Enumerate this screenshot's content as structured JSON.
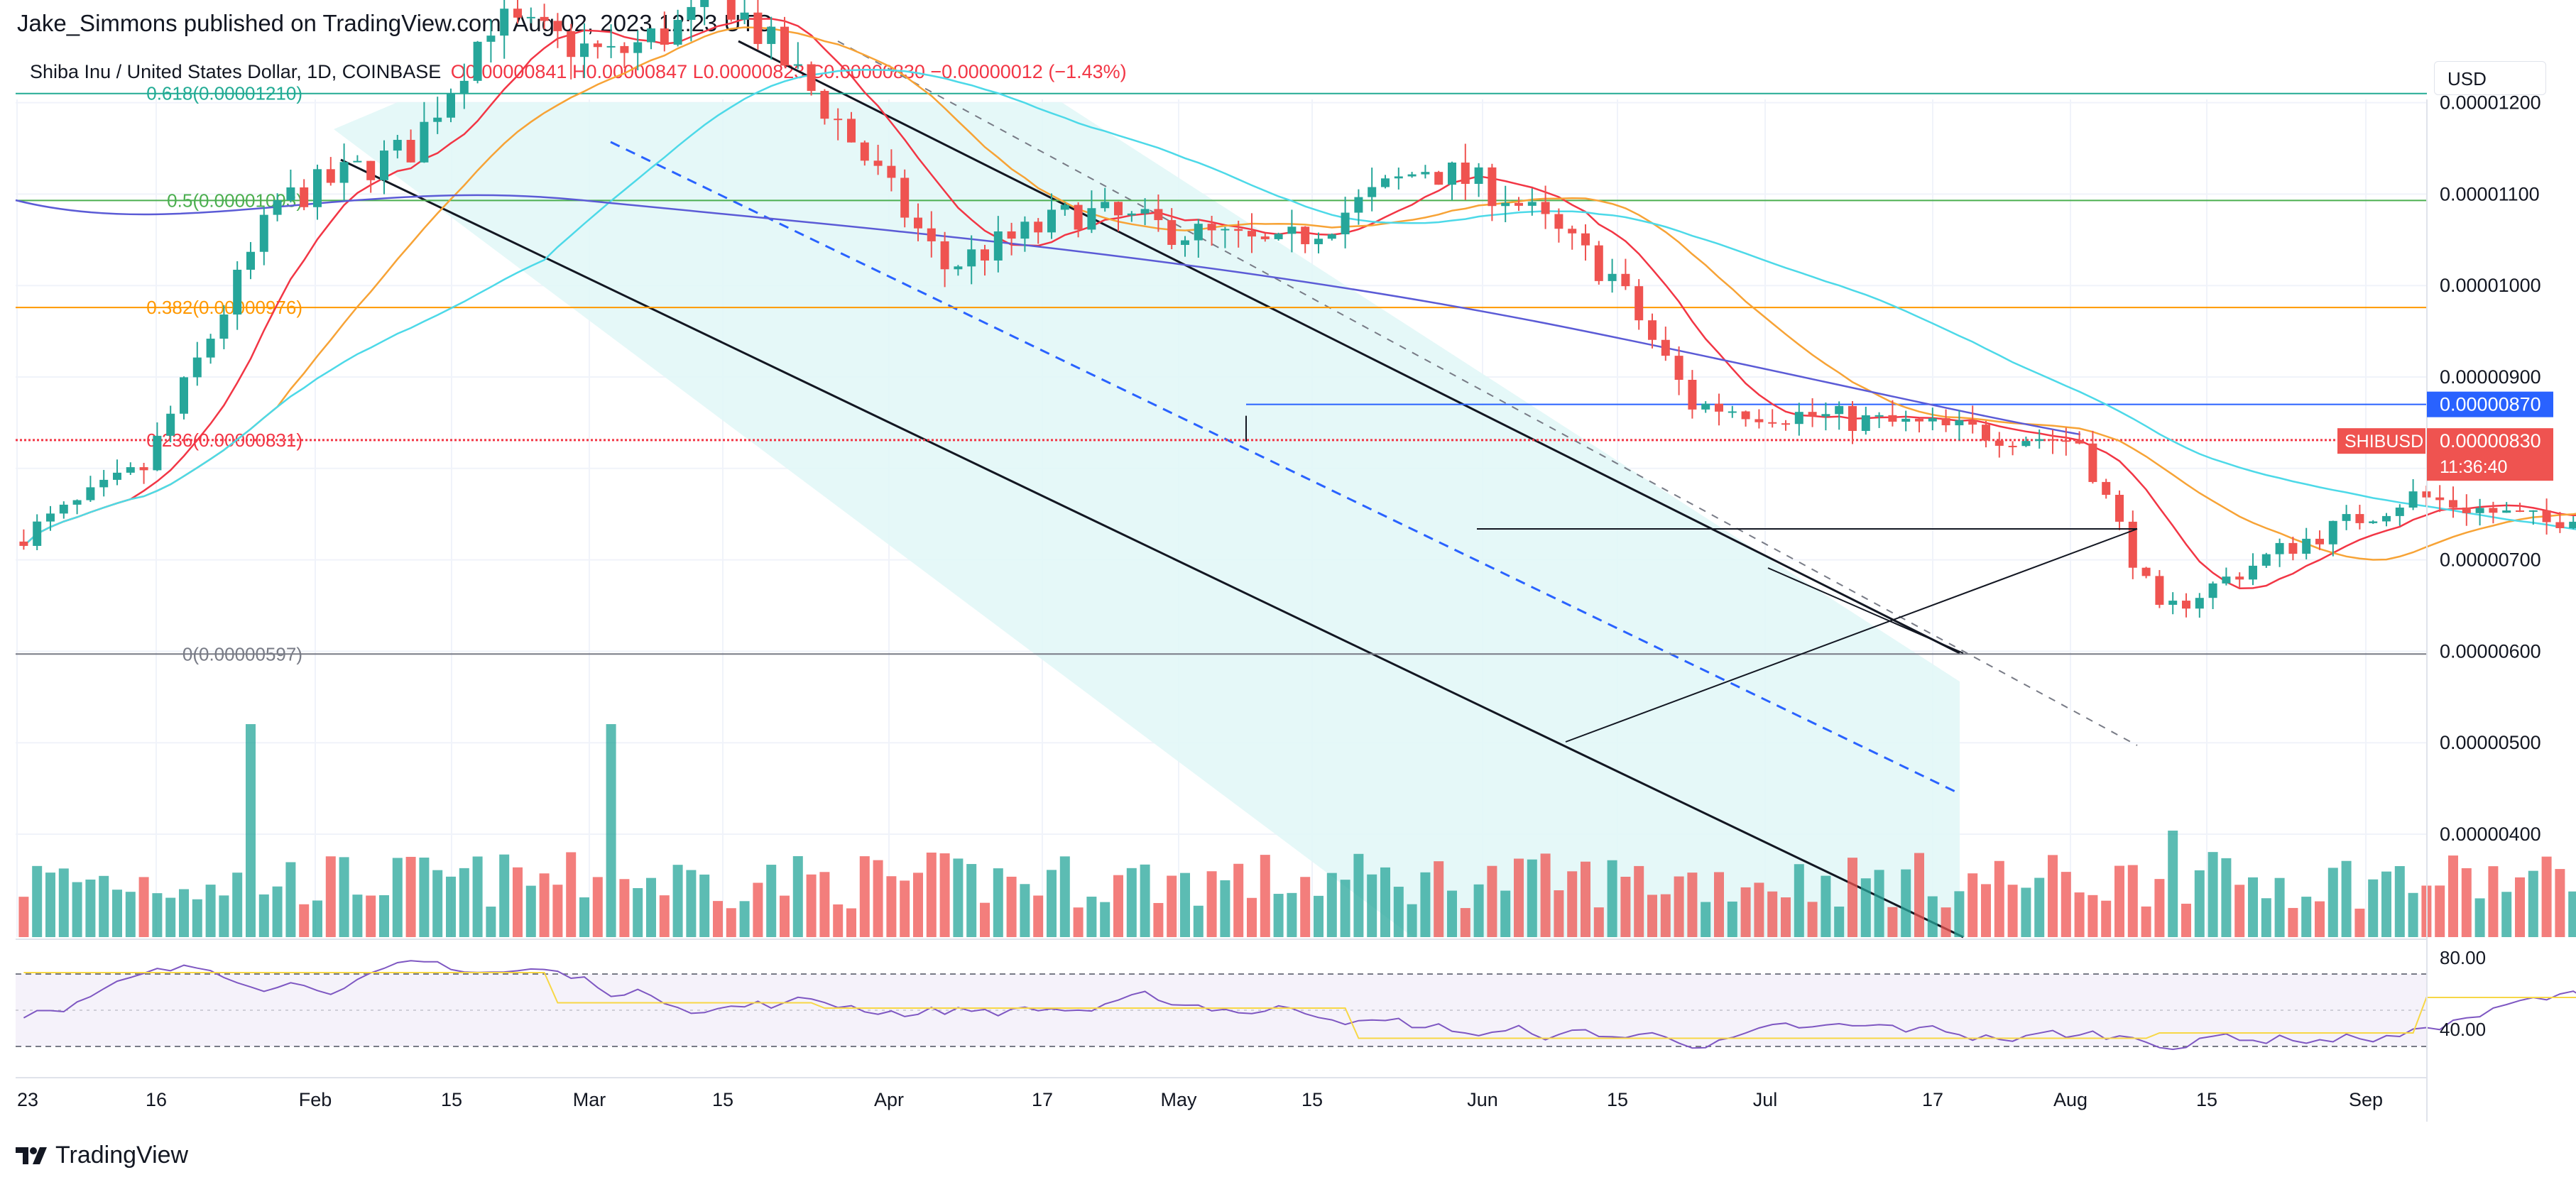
{
  "header": {
    "published": "Jake_Simmons published on TradingView.com, Aug 02, 2023 12:23 UTC"
  },
  "legend": {
    "symbol": "Shiba Inu / United States Dollar, 1D, COINBASE",
    "ohlc": "O0.00000841  H0.00000847  L0.00000823  C0.00000830  −0.00000012 (−1.43%)"
  },
  "currency": "USD",
  "brand": {
    "name": "TradingView",
    "icon": "tradingview-logo-icon"
  },
  "colors": {
    "up": "#26a69a",
    "down": "#ef5350",
    "ma_short": "#f23645",
    "ma_mid": "#f7a336",
    "ma_cyan": "#4dd9e8",
    "ma_long": "#5b5bd6",
    "rsi": "#7e57c2",
    "rsi_ma": "#f7d746",
    "fib_0618": "#22ab94",
    "fib_05": "#4caf50",
    "fib_0382": "#ff9800",
    "fib_0236": "#f23645",
    "fib_0": "#787b86",
    "channel_fill": "#e0f7f7",
    "price_label": "#2962ff"
  },
  "chart_data": {
    "type": "candlestick",
    "symbol": "SHIBUSD",
    "timeframe": "1D",
    "y_axis": {
      "ticks": [
        "0.00000400",
        "0.00000500",
        "0.00000600",
        "0.00000700",
        "0.00000800",
        "0.00000900",
        "0.00001000",
        "0.00001100",
        "0.00001200"
      ],
      "range": [
        3.8e-06,
        1.3e-05
      ]
    },
    "x_axis": {
      "ticks": [
        "23",
        "16",
        "Feb",
        "15",
        "Mar",
        "15",
        "Apr",
        "17",
        "May",
        "15",
        "Jun",
        "15",
        "Jul",
        "17",
        "Aug",
        "15",
        "Sep"
      ]
    },
    "fibonacci": [
      {
        "label": "0.618(0.00001210)",
        "value": 1.21e-05
      },
      {
        "label": "0.5(0.00001093)",
        "value": 1.093e-05
      },
      {
        "label": "0.382(0.00000976)",
        "value": 9.76e-06
      },
      {
        "label": "0.236(0.00000831)",
        "value": 8.31e-06
      },
      {
        "label": "0(0.00000597)",
        "value": 5.97e-06
      }
    ],
    "horizontal_line": {
      "label": "0.00000870",
      "value": 8.7e-06
    },
    "last_price": {
      "symbol": "SHIBUSD",
      "value": "0.00000830",
      "countdown": "11:36:40"
    },
    "rsi": {
      "ticks": [
        "80.00",
        "40.00"
      ],
      "band": [
        30,
        70
      ]
    }
  }
}
